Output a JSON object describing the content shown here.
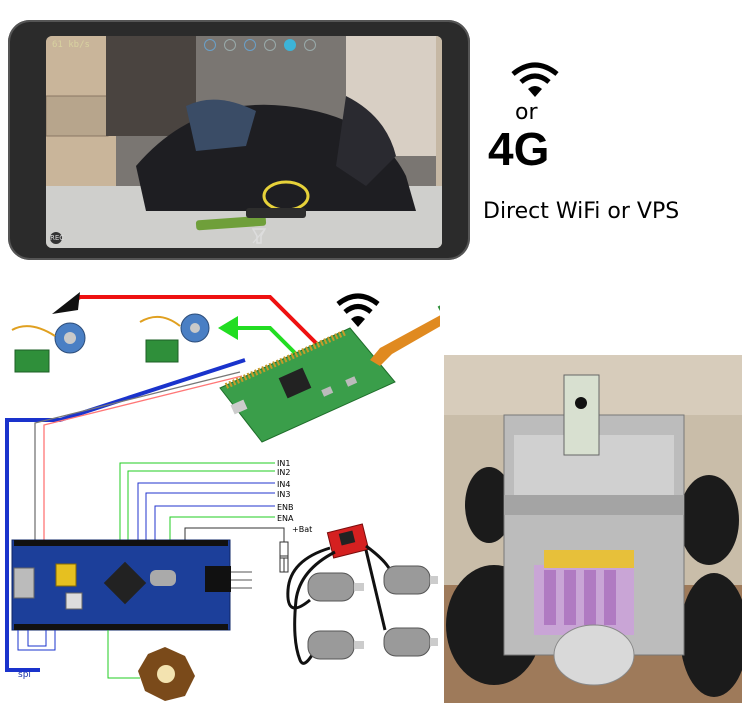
{
  "phone": {
    "speed_label": "61 kb/s",
    "rec_label": "REC"
  },
  "connectivity": {
    "or_label": "or",
    "g4_label": "4G",
    "direct_label": "Direct WiFi or VPS"
  },
  "pins": {
    "in1": "IN1",
    "in2": "IN2",
    "in4": "IN4",
    "in3": "IN3",
    "enb": "ENB",
    "ena": "ENA",
    "bat": "+Bat"
  },
  "spi_label": "spi",
  "colors": {
    "red_wire": "#ee1111",
    "green_wire": "#22dd22",
    "blue_wire": "#1a33cc",
    "board_blue": "#1c3f9a",
    "pcb_green": "#2f8f3a"
  },
  "icons": [
    "wifi-icon",
    "stepper-motor-icon",
    "raspberry-pi-icon",
    "camera-icon",
    "stm32-board-icon",
    "motor-driver-icon",
    "dc-motor-icon",
    "led-icon",
    "robot-photo"
  ]
}
